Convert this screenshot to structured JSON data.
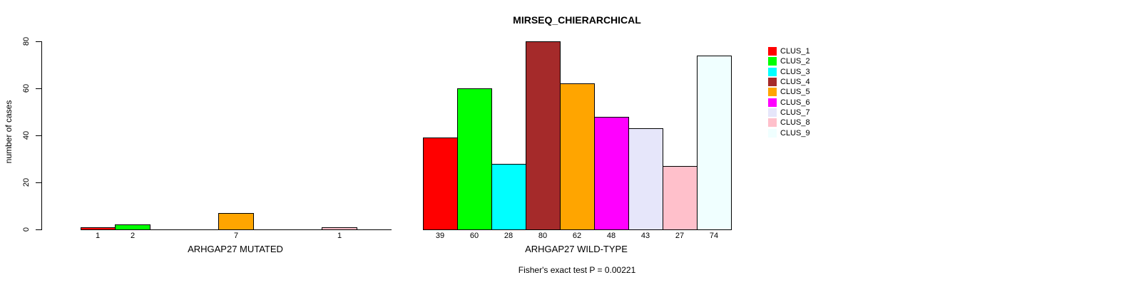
{
  "page": {
    "background": "#ffffff"
  },
  "chart_data": {
    "type": "bar",
    "title": "MIRSEQ_CHIERARCHICAL",
    "ylabel": "number of cases",
    "ylim": [
      0,
      80
    ],
    "yticks": [
      0,
      20,
      40,
      60,
      80
    ],
    "grid": false,
    "legend_position": "right",
    "bar_border_color": "#000000",
    "categories": [
      "CLUS_1",
      "CLUS_2",
      "CLUS_3",
      "CLUS_4",
      "CLUS_5",
      "CLUS_6",
      "CLUS_7",
      "CLUS_8",
      "CLUS_9"
    ],
    "colors": [
      "#ff0000",
      "#00ff00",
      "#00ffff",
      "#a52a2a",
      "#ffa500",
      "#ff00ff",
      "#e6e6fa",
      "#ffc0cb",
      "#f0ffff"
    ],
    "groups": [
      {
        "label": "ARHGAP27 MUTATED",
        "values": [
          1,
          2,
          0,
          0,
          7,
          0,
          0,
          1,
          0
        ]
      },
      {
        "label": "ARHGAP27 WILD-TYPE",
        "values": [
          39,
          60,
          28,
          80,
          62,
          48,
          43,
          27,
          74
        ]
      }
    ],
    "footnote": "Fisher's exact test P = 0.00221"
  }
}
